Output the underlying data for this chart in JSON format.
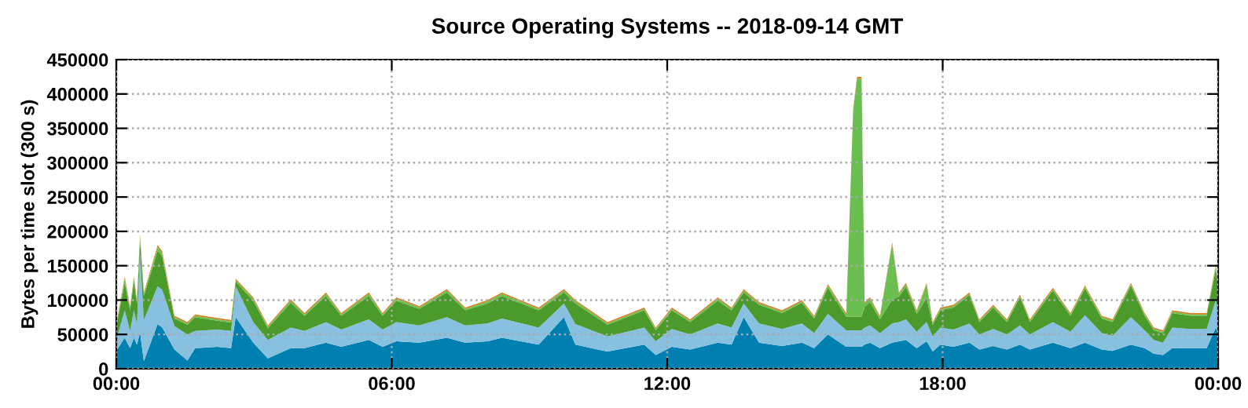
{
  "chart_data": {
    "type": "area",
    "stacked": true,
    "title": "Source Operating Systems -- 2018-09-14 GMT",
    "ylabel": "Bytes per time slot (300 s)",
    "x": [
      "2018-09-14T00:00",
      "2018-09-14T00:11",
      "2018-09-14T00:18",
      "2018-09-14T00:23",
      "2018-09-14T00:27",
      "2018-09-14T00:31",
      "2018-09-14T00:36",
      "2018-09-14T00:54",
      "2018-09-14T01:00",
      "2018-09-14T01:16",
      "2018-09-14T01:33",
      "2018-09-14T01:43",
      "2018-09-14T02:12",
      "2018-09-14T02:30",
      "2018-09-14T02:36",
      "2018-09-14T02:59",
      "2018-09-14T03:18",
      "2018-09-14T03:48",
      "2018-09-14T04:06",
      "2018-09-14T04:34",
      "2018-09-14T04:54",
      "2018-09-14T05:30",
      "2018-09-14T05:48",
      "2018-09-14T06:06",
      "2018-09-14T06:36",
      "2018-09-14T07:12",
      "2018-09-14T07:36",
      "2018-09-14T08:05",
      "2018-09-14T08:24",
      "2018-09-14T09:12",
      "2018-09-14T09:45",
      "2018-09-14T10:00",
      "2018-09-14T10:42",
      "2018-09-14T11:30",
      "2018-09-14T11:45",
      "2018-09-14T12:06",
      "2018-09-14T12:30",
      "2018-09-14T13:06",
      "2018-09-14T13:24",
      "2018-09-14T13:40",
      "2018-09-14T14:00",
      "2018-09-14T14:30",
      "2018-09-14T14:56",
      "2018-09-14T15:12",
      "2018-09-14T15:30",
      "2018-09-14T15:54",
      "2018-09-14T16:03",
      "2018-09-14T16:08",
      "2018-09-14T16:14",
      "2018-09-14T16:18",
      "2018-09-14T16:25",
      "2018-09-14T16:38",
      "2018-09-14T16:54",
      "2018-09-14T17:03",
      "2018-09-14T17:12",
      "2018-09-14T17:26",
      "2018-09-14T17:39",
      "2018-09-14T17:47",
      "2018-09-14T17:57",
      "2018-09-14T18:14",
      "2018-09-14T18:35",
      "2018-09-14T18:48",
      "2018-09-14T19:06",
      "2018-09-14T19:24",
      "2018-09-14T19:41",
      "2018-09-14T19:54",
      "2018-09-14T20:24",
      "2018-09-14T20:47",
      "2018-09-14T21:06",
      "2018-09-14T21:28",
      "2018-09-14T21:42",
      "2018-09-14T22:06",
      "2018-09-14T22:24",
      "2018-09-14T22:36",
      "2018-09-14T22:48",
      "2018-09-14T23:00",
      "2018-09-14T23:24",
      "2018-09-14T23:45",
      "2018-09-14T23:57",
      "2018-09-15T00:00"
    ],
    "series": [
      {
        "color": "#0080b0",
        "values": [
          26000,
          45000,
          30000,
          45000,
          35000,
          53000,
          11000,
          65000,
          60000,
          28000,
          12000,
          30000,
          32000,
          30000,
          75000,
          38000,
          15000,
          30000,
          30000,
          38000,
          32000,
          42000,
          32000,
          40000,
          38000,
          45000,
          38000,
          40000,
          45000,
          35000,
          75000,
          35000,
          25000,
          35000,
          20000,
          32000,
          28000,
          38000,
          35000,
          75000,
          38000,
          33000,
          38000,
          30000,
          50000,
          32000,
          32000,
          32000,
          32000,
          35000,
          38000,
          30000,
          38000,
          40000,
          42000,
          30000,
          40000,
          25000,
          35000,
          32000,
          38000,
          28000,
          33000,
          28000,
          35000,
          28000,
          38000,
          30000,
          38000,
          28000,
          26000,
          35000,
          30000,
          22000,
          20000,
          30000,
          30000,
          30000,
          60000,
          50000
        ]
      },
      {
        "color": "#88c0e0",
        "values": [
          16000,
          40000,
          25000,
          40000,
          30000,
          114000,
          60000,
          55000,
          55000,
          34000,
          38000,
          25000,
          25000,
          25000,
          45000,
          30000,
          27000,
          30000,
          25000,
          30000,
          25000,
          30000,
          25000,
          28000,
          25000,
          30000,
          25000,
          26000,
          28000,
          25000,
          20000,
          30000,
          22000,
          25000,
          20000,
          26000,
          22000,
          28000,
          25000,
          20000,
          28000,
          25000,
          28000,
          22000,
          30000,
          24000,
          24000,
          24000,
          24000,
          25000,
          25000,
          22000,
          28000,
          28000,
          30000,
          24000,
          28000,
          22000,
          25000,
          25000,
          28000,
          22000,
          25000,
          22000,
          28000,
          22000,
          30000,
          24000,
          40000,
          24000,
          22000,
          40000,
          26000,
          20000,
          18000,
          30000,
          28000,
          28000,
          40000,
          35000
        ]
      },
      {
        "color": "#4a9a2c",
        "values": [
          19000,
          40000,
          30000,
          42000,
          30000,
          20000,
          35000,
          52000,
          49000,
          11000,
          14000,
          20000,
          13000,
          12000,
          7000,
          31000,
          17000,
          36000,
          22000,
          38000,
          20000,
          34000,
          20000,
          31000,
          24000,
          36000,
          22000,
          29000,
          33000,
          25000,
          16000,
          30000,
          17000,
          25000,
          16000,
          27000,
          18000,
          33000,
          25000,
          16000,
          27000,
          23000,
          30000,
          21000,
          38000,
          20000,
          20000,
          20000,
          20000,
          30000,
          34000,
          20000,
          35000,
          37000,
          47000,
          26000,
          35000,
          17000,
          25000,
          32000,
          41000,
          18000,
          31000,
          18000,
          41000,
          18000,
          46000,
          23000,
          39000,
          21000,
          20000,
          46000,
          21000,
          14000,
          14000,
          21000,
          19000,
          19000,
          45000,
          31000
        ]
      },
      {
        "color": "#6abf50",
        "values": [
          3000,
          6000,
          4000,
          4000,
          4000,
          5000,
          3000,
          5000,
          4000,
          2000,
          2000,
          2000,
          2000,
          2000,
          2000,
          3000,
          2000,
          3000,
          2000,
          3000,
          2000,
          3000,
          2000,
          3000,
          2000,
          3000,
          2000,
          3000,
          3000,
          2000,
          3000,
          3000,
          2000,
          2000,
          2000,
          2000,
          2000,
          3000,
          2000,
          3000,
          2000,
          2000,
          2000,
          2000,
          3000,
          3000,
          300000,
          346000,
          346000,
          5000,
          5000,
          3000,
          80000,
          4000,
          4000,
          3000,
          20000,
          2000,
          2000,
          2000,
          2000,
          2000,
          2000,
          2000,
          2000,
          2000,
          2000,
          2000,
          2000,
          2000,
          2000,
          2000,
          2000,
          2000,
          2000,
          2000,
          2000,
          2000,
          5000,
          3000
        ]
      },
      {
        "color": "#d08020",
        "values": [
          2000,
          3000,
          2000,
          3000,
          2000,
          3000,
          2000,
          3000,
          3000,
          2000,
          2000,
          2000,
          2000,
          2000,
          2000,
          2000,
          2000,
          2000,
          2000,
          2000,
          2000,
          2000,
          2000,
          2000,
          2000,
          2000,
          2000,
          2000,
          2000,
          2000,
          2000,
          2000,
          2000,
          2000,
          2000,
          2000,
          2000,
          2000,
          2000,
          2000,
          2000,
          2000,
          2000,
          2000,
          2000,
          2000,
          2000,
          3000,
          3000,
          2000,
          2000,
          2000,
          3000,
          2000,
          2000,
          2000,
          2000,
          2000,
          2000,
          2000,
          2000,
          2000,
          2000,
          2000,
          2000,
          2000,
          2000,
          2000,
          2000,
          2000,
          2000,
          2000,
          2000,
          2000,
          2000,
          2000,
          2000,
          2000,
          2000,
          2000
        ]
      }
    ],
    "xlim": [
      "2018-09-14T00:00",
      "2018-09-15T00:00"
    ],
    "xticks": [
      {
        "value": "2018-09-14T00:00",
        "label": "00:00"
      },
      {
        "value": "2018-09-14T06:00",
        "label": "06:00"
      },
      {
        "value": "2018-09-14T12:00",
        "label": "12:00"
      },
      {
        "value": "2018-09-14T18:00",
        "label": "18:00"
      },
      {
        "value": "2018-09-15T00:00",
        "label": "00:00"
      }
    ],
    "ylim": [
      0,
      450000
    ],
    "yticks": [
      0,
      50000,
      100000,
      150000,
      200000,
      250000,
      300000,
      350000,
      400000,
      450000
    ],
    "grid": true,
    "legend": false
  }
}
